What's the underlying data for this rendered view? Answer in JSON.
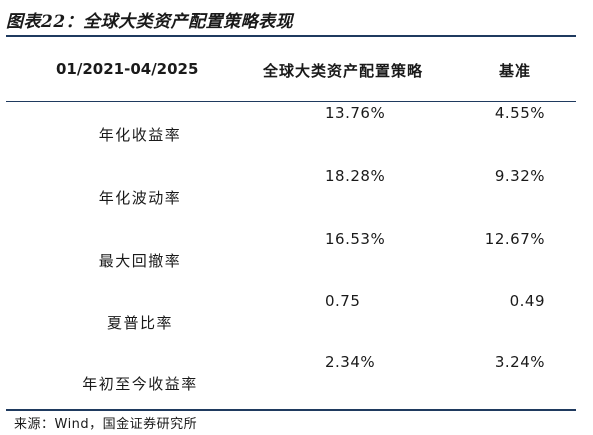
{
  "title": "图表22：全球大类资产配置策略表现",
  "table": {
    "headers": [
      "01/2021-04/2025",
      "全球大类资产配置策略",
      "基准"
    ],
    "rows": [
      {
        "label": "年化收益率",
        "strategy": "13.76%",
        "benchmark": "4.55%"
      },
      {
        "label": "年化波动率",
        "strategy": "18.28%",
        "benchmark": "9.32%"
      },
      {
        "label": "最大回撤率",
        "strategy": "16.53%",
        "benchmark": "12.67%"
      },
      {
        "label": "夏普比率",
        "strategy": "0.75",
        "benchmark": "0.49"
      },
      {
        "label": "年初至今收益率",
        "strategy": "2.34%",
        "benchmark": "3.24%"
      }
    ]
  },
  "source": "来源：Wind，国金证券研究所"
}
